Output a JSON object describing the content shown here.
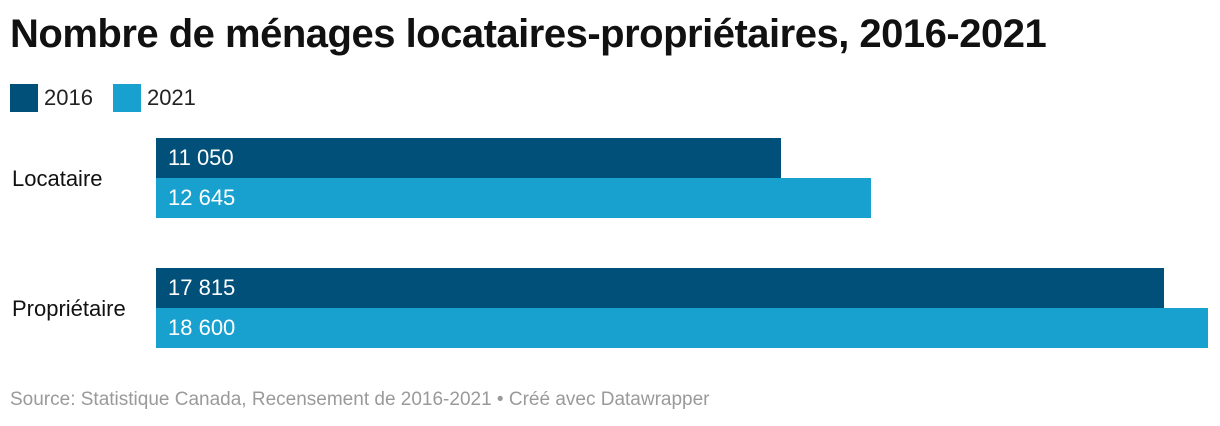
{
  "chart_data": {
    "type": "bar",
    "orientation": "horizontal",
    "title": "Nombre de ménages locataires-propriétaires, 2016-2021",
    "categories": [
      "Locataire",
      "Propriétaire"
    ],
    "series": [
      {
        "name": "2016",
        "color": "#00507a",
        "values": [
          11050,
          17815
        ],
        "labels": [
          "11 050",
          "17 815"
        ]
      },
      {
        "name": "2021",
        "color": "#18a1cf",
        "values": [
          12645,
          18600
        ],
        "labels": [
          "12 645",
          "18 600"
        ]
      }
    ],
    "xlim": [
      0,
      18600
    ],
    "legend": "top-left",
    "grid": false
  },
  "source": "Source: Statistique Canada, Recensement de 2016-2021 • Créé avec Datawrapper"
}
